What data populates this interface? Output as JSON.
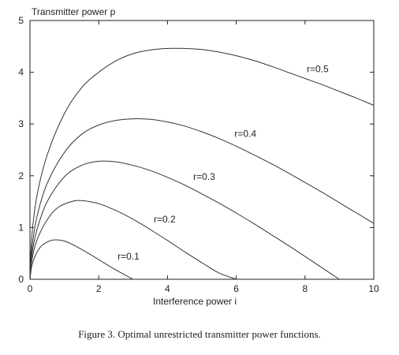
{
  "chart_data": {
    "type": "line",
    "ylabel": "Transmitter power p",
    "xlabel": "Interference power i",
    "xlim": [
      0,
      10
    ],
    "ylim": [
      0,
      5
    ],
    "xticks": [
      "0",
      "2",
      "4",
      "6",
      "8",
      "10"
    ],
    "yticks": [
      "0",
      "1",
      "2",
      "3",
      "4",
      "5"
    ],
    "grid": false,
    "series": [
      {
        "name": "r=0.5",
        "x": [
          0,
          0.05,
          0.2,
          0.5,
          1,
          1.5,
          2,
          2.5,
          3,
          3.5,
          4,
          4.5,
          5,
          5.5,
          6,
          6.5,
          7,
          7.5,
          8,
          8.5,
          9,
          9.5,
          10
        ],
        "y": [
          0,
          0.8,
          1.6,
          2.4,
          3.2,
          3.7,
          4.0,
          4.22,
          4.36,
          4.43,
          4.46,
          4.46,
          4.44,
          4.39,
          4.32,
          4.23,
          4.12,
          4.0,
          3.88,
          3.76,
          3.63,
          3.5,
          3.36
        ]
      },
      {
        "name": "r=0.4",
        "x": [
          0,
          0.05,
          0.2,
          0.5,
          1,
          1.5,
          2,
          2.5,
          3,
          3.5,
          4,
          4.5,
          5,
          5.5,
          6,
          6.5,
          7,
          7.5,
          8,
          8.5,
          9,
          9.5,
          10
        ],
        "y": [
          0,
          0.55,
          1.2,
          1.85,
          2.45,
          2.8,
          2.98,
          3.07,
          3.1,
          3.09,
          3.04,
          2.96,
          2.85,
          2.72,
          2.57,
          2.41,
          2.24,
          2.06,
          1.87,
          1.68,
          1.48,
          1.28,
          1.08
        ]
      },
      {
        "name": "r=0.3",
        "x": [
          0,
          0.05,
          0.2,
          0.5,
          1,
          1.5,
          2,
          2.5,
          3,
          3.5,
          4,
          4.5,
          5,
          5.5,
          6,
          6.5,
          7,
          7.5,
          8,
          8.5,
          9
        ],
        "y": [
          0,
          0.45,
          0.95,
          1.5,
          1.98,
          2.2,
          2.28,
          2.27,
          2.2,
          2.1,
          1.97,
          1.82,
          1.65,
          1.47,
          1.28,
          1.08,
          0.87,
          0.66,
          0.44,
          0.22,
          0.0
        ]
      },
      {
        "name": "r=0.2",
        "x": [
          0,
          0.05,
          0.2,
          0.5,
          0.8,
          1.2,
          1.5,
          2,
          2.5,
          3,
          3.5,
          4,
          4.5,
          5,
          5.5,
          6
        ],
        "y": [
          0,
          0.35,
          0.75,
          1.15,
          1.38,
          1.5,
          1.52,
          1.46,
          1.33,
          1.16,
          0.96,
          0.75,
          0.53,
          0.32,
          0.12,
          0.0
        ]
      },
      {
        "name": "r=0.1",
        "x": [
          0,
          0.05,
          0.15,
          0.3,
          0.5,
          0.7,
          1,
          1.3,
          1.6,
          2,
          2.5,
          3
        ],
        "y": [
          0,
          0.25,
          0.45,
          0.62,
          0.72,
          0.76,
          0.74,
          0.65,
          0.54,
          0.38,
          0.18,
          0.0
        ]
      }
    ],
    "annotations": [
      {
        "text": "r=0.5",
        "x": 8.05,
        "y": 4.0
      },
      {
        "text": "r=0.4",
        "x": 5.95,
        "y": 2.75
      },
      {
        "text": "r=0.3",
        "x": 4.75,
        "y": 1.92
      },
      {
        "text": "r=0.2",
        "x": 3.6,
        "y": 1.1
      },
      {
        "text": "r=0.1",
        "x": 2.55,
        "y": 0.38
      }
    ]
  },
  "caption": "Figure 3. Optimal unrestricted transmitter power functions."
}
